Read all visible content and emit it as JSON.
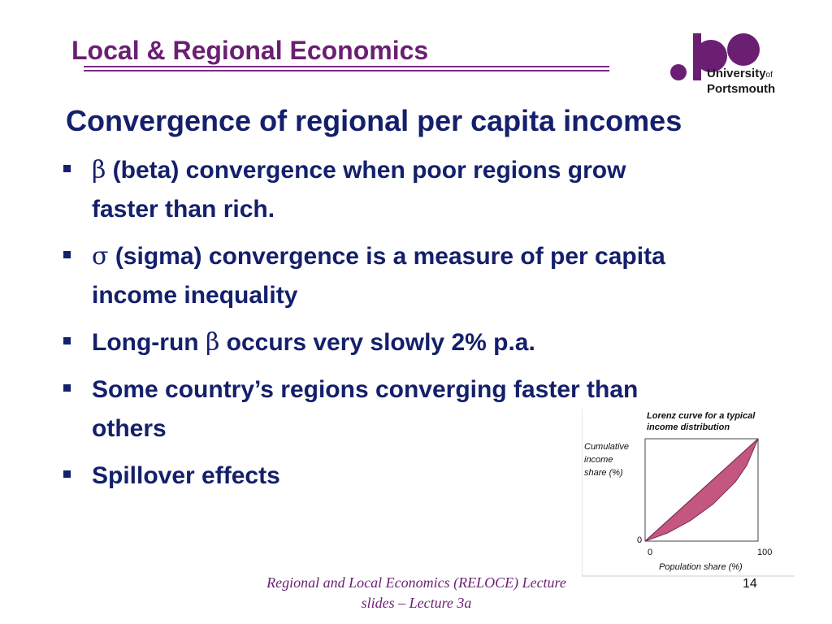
{
  "header": {
    "title": "Local & Regional Economics",
    "accent_color": "#6b1f73",
    "logo": {
      "line1": "University",
      "of": "of",
      "line2": "Portsmouth"
    }
  },
  "slide": {
    "title": "Convergence of regional per capita incomes",
    "title_color": "#14206b",
    "bullets": [
      {
        "symbol": "β",
        "text_line1": " (beta) convergence when poor regions grow",
        "text_line2": "faster than rich."
      },
      {
        "symbol": "σ",
        "text_line1": " (sigma) convergence is a measure of per capita",
        "text_line2": "income inequality"
      },
      {
        "prefix": "Long-run ",
        "symbol": "β",
        "suffix": " occurs very slowly 2% p.a."
      },
      {
        "text_line1": "Some country’s regions converging faster than",
        "text_line2": "others"
      },
      {
        "text_line1": "Spillover effects"
      }
    ]
  },
  "chart_data": {
    "type": "area",
    "title": "Lorenz curve for a typical income distribution",
    "title_line1": "Lorenz curve for a typical",
    "title_line2": "income distribution",
    "ylabel_lines": [
      "Cumulative",
      "income",
      "share (%)"
    ],
    "xlabel": "Population share (%)",
    "x_ticks": [
      "0",
      "100"
    ],
    "y_ticks": [
      "0"
    ],
    "xlim": [
      0,
      100
    ],
    "ylim": [
      0,
      100
    ],
    "series": [
      {
        "x": [
          0,
          100
        ],
        "y": [
          0,
          100
        ]
      },
      {
        "x": [
          0,
          20,
          40,
          60,
          80,
          90,
          100
        ],
        "y": [
          0,
          8,
          20,
          36,
          58,
          74,
          100
        ]
      }
    ],
    "fill_color": "#c4577f"
  },
  "footer": {
    "line1": "Regional and Local Economics (RELOCE) Lecture",
    "line2": "slides – Lecture 3a",
    "page_number": "14"
  }
}
